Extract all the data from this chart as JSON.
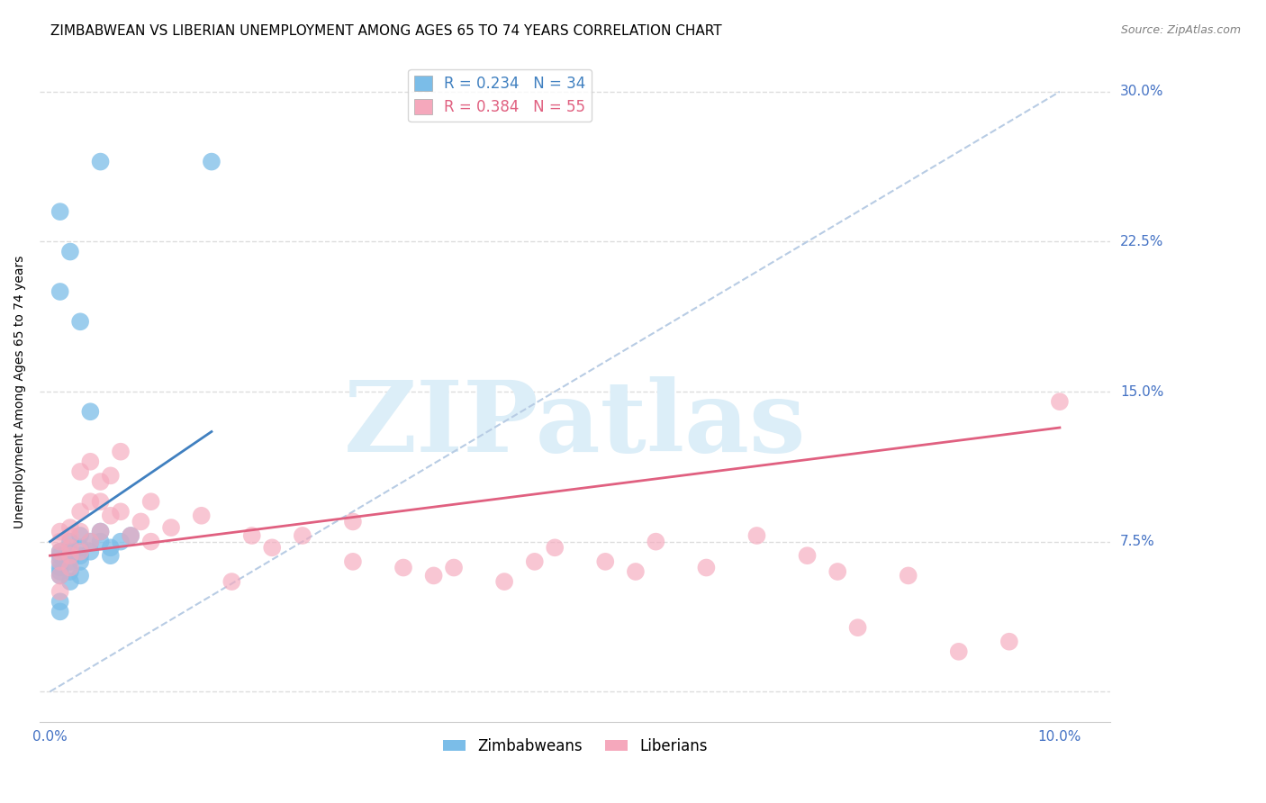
{
  "title": "ZIMBABWEAN VS LIBERIAN UNEMPLOYMENT AMONG AGES 65 TO 74 YEARS CORRELATION CHART",
  "source": "Source: ZipAtlas.com",
  "ylabel": "Unemployment Among Ages 65 to 74 years",
  "ytick_vals": [
    0.0,
    0.075,
    0.15,
    0.225,
    0.3
  ],
  "ytick_labels": [
    "",
    "7.5%",
    "15.0%",
    "22.5%",
    "30.0%"
  ],
  "xlim": [
    -0.001,
    0.105
  ],
  "ylim": [
    -0.015,
    0.315
  ],
  "zim_R": 0.234,
  "zim_N": 34,
  "lib_R": 0.384,
  "lib_N": 55,
  "zim_color": "#7bbde8",
  "lib_color": "#f5a8bc",
  "zim_line_color": "#4080c0",
  "lib_line_color": "#e06080",
  "ref_line_color": "#b8cce4",
  "watermark_color": "#dceef8",
  "title_fontsize": 11,
  "source_fontsize": 9,
  "axis_label_fontsize": 10,
  "tick_fontsize": 11,
  "legend_fontsize": 12,
  "zim_x": [
    0.001,
    0.001,
    0.001,
    0.001,
    0.001,
    0.001,
    0.001,
    0.001,
    0.002,
    0.002,
    0.002,
    0.002,
    0.002,
    0.002,
    0.003,
    0.003,
    0.003,
    0.003,
    0.003,
    0.004,
    0.004,
    0.005,
    0.005,
    0.006,
    0.006,
    0.007,
    0.008,
    0.001,
    0.002,
    0.003,
    0.004,
    0.005,
    0.016,
    0.001
  ],
  "zim_y": [
    0.07,
    0.068,
    0.065,
    0.062,
    0.06,
    0.058,
    0.045,
    0.04,
    0.075,
    0.07,
    0.068,
    0.065,
    0.06,
    0.055,
    0.078,
    0.072,
    0.068,
    0.065,
    0.058,
    0.075,
    0.07,
    0.08,
    0.075,
    0.072,
    0.068,
    0.075,
    0.078,
    0.24,
    0.22,
    0.185,
    0.14,
    0.265,
    0.265,
    0.2
  ],
  "lib_x": [
    0.001,
    0.001,
    0.001,
    0.001,
    0.001,
    0.001,
    0.002,
    0.002,
    0.002,
    0.002,
    0.002,
    0.003,
    0.003,
    0.003,
    0.003,
    0.004,
    0.004,
    0.004,
    0.005,
    0.005,
    0.005,
    0.006,
    0.006,
    0.007,
    0.007,
    0.008,
    0.009,
    0.01,
    0.01,
    0.012,
    0.015,
    0.018,
    0.02,
    0.022,
    0.025,
    0.03,
    0.03,
    0.035,
    0.038,
    0.04,
    0.045,
    0.048,
    0.05,
    0.055,
    0.058,
    0.06,
    0.065,
    0.07,
    0.075,
    0.078,
    0.08,
    0.085,
    0.09,
    0.095,
    0.1
  ],
  "lib_y": [
    0.08,
    0.075,
    0.07,
    0.065,
    0.058,
    0.05,
    0.082,
    0.078,
    0.072,
    0.068,
    0.062,
    0.11,
    0.09,
    0.08,
    0.07,
    0.115,
    0.095,
    0.075,
    0.105,
    0.095,
    0.08,
    0.108,
    0.088,
    0.12,
    0.09,
    0.078,
    0.085,
    0.095,
    0.075,
    0.082,
    0.088,
    0.055,
    0.078,
    0.072,
    0.078,
    0.085,
    0.065,
    0.062,
    0.058,
    0.062,
    0.055,
    0.065,
    0.072,
    0.065,
    0.06,
    0.075,
    0.062,
    0.078,
    0.068,
    0.06,
    0.032,
    0.058,
    0.02,
    0.025,
    0.145
  ],
  "zim_line_x": [
    0.0,
    0.016
  ],
  "zim_line_y": [
    0.075,
    0.13
  ],
  "lib_line_x": [
    0.0,
    0.1
  ],
  "lib_line_y": [
    0.068,
    0.132
  ]
}
